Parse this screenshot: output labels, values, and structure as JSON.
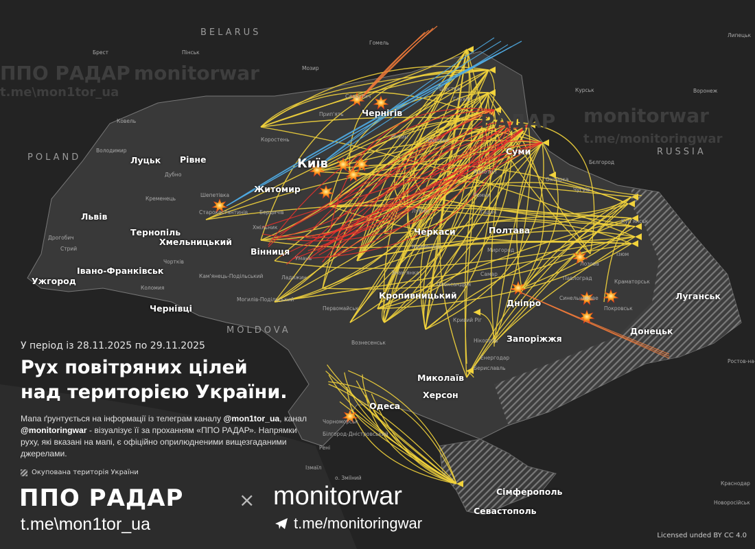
{
  "header": {
    "period": "У період із 28.11.2025 по 29.11.2025",
    "title_line1": "Рух повітряних цілей",
    "title_line2": "над територією України."
  },
  "description": {
    "p1": "Мапа ґрунтується на інформації із телеграм каналу ",
    "h1": "@mon1tor_ua",
    "p2": ", канал ",
    "h2": "@monitoringwar",
    "p3": " - візуалізує її за проханням «ППО РАДАР». Напрямки руху, які вказані на мапі, є офіційно оприлюдненими вищезгаданими джерелами."
  },
  "legend": {
    "occupied": "Окупована територія України"
  },
  "footer": {
    "brand1": "ППО РАДАР",
    "times": "×",
    "brand2": "monitorwar",
    "link1": "t.me\\mon1tor_ua",
    "link2": "t.me/monitoringwar",
    "license": "Licensed unded BY CC 4.0"
  },
  "watermarks": [
    "ППО РАДАР",
    "monitorwar",
    "t.me\\mon1tor_ua",
    "РАДАР",
    "monitorwar",
    "t.me/monitoringwar"
  ],
  "countries": [
    "BELARUS",
    "POLAND",
    "RUSSIA",
    "MOLDOVA"
  ],
  "cities": [
    "Київ",
    "Чернігів",
    "Суми",
    "Житомир",
    "Луцьк",
    "Рівне",
    "Львів",
    "Тернопіль",
    "Хмельницький",
    "Вінниця",
    "Івано-Франківськ",
    "Ужгород",
    "Чернівці",
    "Черкаси",
    "Полтава",
    "Кропивницький",
    "Дніпро",
    "Запоріжжя",
    "Донецьк",
    "Луганськ",
    "Миколаїв",
    "Херсон",
    "Одеса",
    "Сімферополь",
    "Севастополь"
  ],
  "towns": [
    "Гомель",
    "Мозир",
    "Пінськ",
    "Брест",
    "Курськ",
    "Воронеж",
    "Бєлгород",
    "Липецьк",
    "Ростов-на-Дону",
    "Краснодар",
    "Новоросійськ",
    "Прип'ять",
    "Коростень",
    "Славутич",
    "Ковель",
    "Володимир",
    "Дубно",
    "Кременець",
    "Шепетівка",
    "Старокостянтинів",
    "Бердичів",
    "Хмільник",
    "Могилів-Подільський",
    "Кам'янець-Подільський",
    "Коломия",
    "Дрогобич",
    "Стрий",
    "Чортків",
    "Умань",
    "Ладижин",
    "Первомайськ",
    "Вознесенськ",
    "Знам'янка",
    "Олександрія",
    "Кривий Ріг",
    "Нікополь",
    "Енергодар",
    "Бериславль",
    "Чорноморськ",
    "Білгород-Дністровський",
    "Ізмаїл",
    "Рені",
    "о. Зміїний",
    "Охтирка",
    "Чугуїв",
    "Куп'янськ",
    "Ізюм",
    "Лозова",
    "Краматорськ",
    "Павлоград",
    "Синельникове",
    "Покровськ",
    "Миргород",
    "Лубни",
    "Кременчук",
    "Прилуки",
    "Ніжин",
    "Конотоп",
    "Глухів",
    "Шостка",
    "Ромни",
    "Гадяч",
    "Самар"
  ],
  "track_colors": {
    "shahed": "#f2d33c",
    "ballistic": "#e5322d",
    "cruise": "#4fa8e0",
    "missile_orange": "#f07a3a"
  },
  "map_colors": {
    "ukraine": "#3a3a3a",
    "background": "#222222",
    "occupied_hatch": "#8a8a8a"
  }
}
